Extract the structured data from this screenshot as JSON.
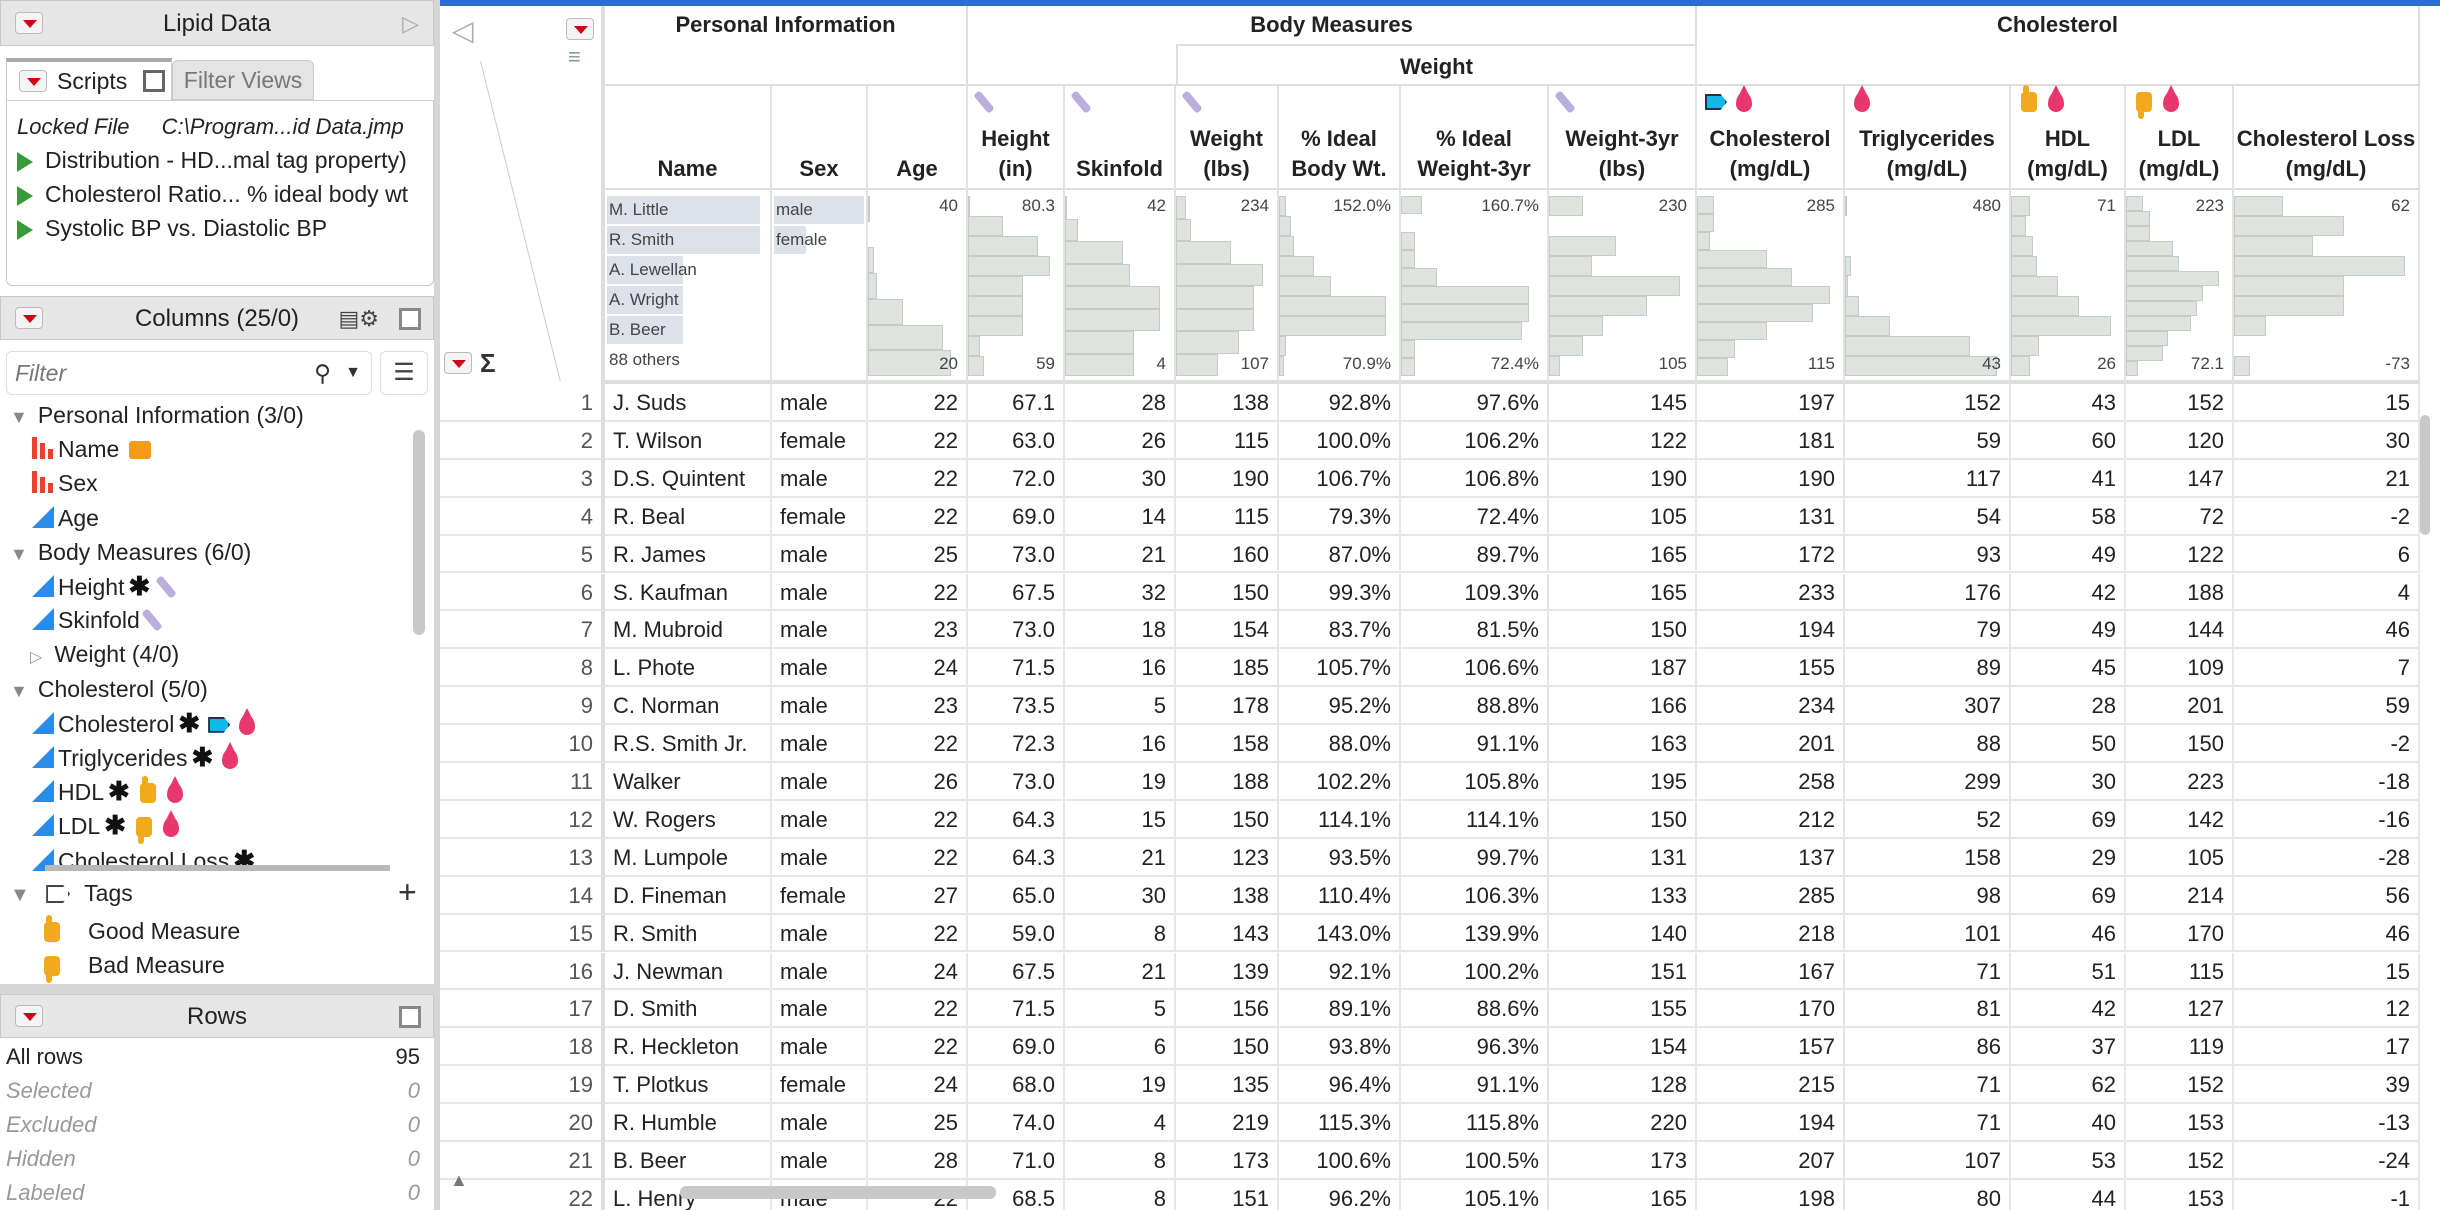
{
  "window": {
    "title": "Lipid Data"
  },
  "scripts_panel": {
    "tabs": [
      {
        "label": "Scripts"
      },
      {
        "label": "Filter Views"
      }
    ],
    "locked_label": "Locked File",
    "locked_path": "C:\\Program...id Data.jmp",
    "scripts": [
      {
        "label": "Distribution - HD...mal tag property)"
      },
      {
        "label": "Cholesterol Ratio... % ideal body wt"
      },
      {
        "label": "Systolic BP vs. Diastolic BP"
      }
    ]
  },
  "columns_panel": {
    "title": "Columns (25/0)",
    "filter_placeholder": "Filter",
    "tree": [
      {
        "label": "Personal Information (3/0)",
        "kind": "group",
        "expanded": true
      },
      {
        "label": "Name",
        "kind": "nominal",
        "icons": [
          "label-icon"
        ]
      },
      {
        "label": "Sex",
        "kind": "nominal",
        "icons": []
      },
      {
        "label": "Age",
        "kind": "continuous",
        "icons": []
      },
      {
        "label": "Body Measures (6/0)",
        "kind": "group",
        "expanded": true
      },
      {
        "label": "Height",
        "kind": "continuous",
        "icons": [
          "asterisk-icon",
          "ruler-icon"
        ]
      },
      {
        "label": "Skinfold",
        "kind": "continuous",
        "icons": [
          "ruler-icon"
        ]
      },
      {
        "label": "Weight (4/0)",
        "kind": "subgroup",
        "expanded": false
      },
      {
        "label": "Cholesterol (5/0)",
        "kind": "group",
        "expanded": true
      },
      {
        "label": "Cholesterol",
        "kind": "continuous",
        "icons": [
          "asterisk-icon",
          "tag-icon",
          "blood-drop-icon"
        ]
      },
      {
        "label": "Triglycerides",
        "kind": "continuous",
        "icons": [
          "asterisk-icon",
          "blood-drop-icon"
        ]
      },
      {
        "label": "HDL",
        "kind": "continuous",
        "icons": [
          "asterisk-icon",
          "thumbs-up-icon",
          "blood-drop-icon"
        ]
      },
      {
        "label": "LDL",
        "kind": "continuous",
        "icons": [
          "asterisk-icon",
          "thumbs-down-icon",
          "blood-drop-icon"
        ]
      },
      {
        "label": "Cholesterol Loss",
        "kind": "continuous",
        "icons": [
          "asterisk-icon"
        ]
      }
    ],
    "tags": {
      "label": "Tags",
      "items": [
        {
          "label": "Good Measure",
          "icon": "thumbs-up-icon"
        },
        {
          "label": "Bad Measure",
          "icon": "thumbs-down-icon"
        }
      ]
    }
  },
  "rows_panel": {
    "title": "Rows",
    "items": [
      {
        "label": "All rows",
        "value": "95"
      },
      {
        "label": "Selected",
        "value": "0"
      },
      {
        "label": "Excluded",
        "value": "0"
      },
      {
        "label": "Hidden",
        "value": "0"
      },
      {
        "label": "Labeled",
        "value": "0"
      }
    ]
  },
  "colors": {
    "accent_bar": "#2a6fc9",
    "nominal": "#e8412c",
    "continuous": "#2c8be6",
    "histogram": "#dfe3df",
    "blood_drop": "#e8366e",
    "tag": "#10b8e8",
    "thumbs": "#f2a91e"
  },
  "table": {
    "groups": [
      {
        "label": "Personal Information",
        "from": 0,
        "to": 2
      },
      {
        "label": "Body Measures",
        "from": 3,
        "to": 8
      },
      {
        "label": "Weight",
        "from": 5,
        "to": 8,
        "sub": true
      },
      {
        "label": "Cholesterol",
        "from": 9,
        "to": 13
      }
    ],
    "columns": [
      {
        "lines": [
          "Name"
        ],
        "icons": [],
        "type": "name",
        "top_values": [
          {
            "label": "M. Little",
            "frac": 0.95
          },
          {
            "label": "R. Smith",
            "frac": 0.95
          },
          {
            "label": "A. Lewellan",
            "frac": 0.47
          },
          {
            "label": "A. Wright",
            "frac": 0.47
          },
          {
            "label": "B. Beer",
            "frac": 0.47
          },
          {
            "label": "88 others",
            "frac": 0
          }
        ]
      },
      {
        "lines": [
          "Sex"
        ],
        "icons": [],
        "type": "sex",
        "top_values": [
          {
            "label": "male",
            "frac": 1.0
          },
          {
            "label": "female",
            "frac": 0.35
          }
        ]
      },
      {
        "lines": [
          "Age"
        ],
        "icons": [],
        "max": "40",
        "min": "20",
        "hist": [
          0.02,
          0,
          0.06,
          0.1,
          0.37,
          0.8,
          0.88
        ]
      },
      {
        "lines": [
          "Height",
          "(in)"
        ],
        "icons": [
          "ruler-icon"
        ],
        "max": "80.3",
        "min": "59",
        "hist": [
          0.02,
          0.38,
          0.77,
          0.9,
          0.6,
          0.6,
          0.6,
          0.13,
          0.18
        ]
      },
      {
        "lines": [
          "Skinfold"
        ],
        "icons": [
          "ruler-icon"
        ],
        "max": "42",
        "min": "4",
        "hist": [
          0.02,
          0.12,
          0.55,
          0.62,
          0.9,
          0.9,
          0.66,
          0.66
        ]
      },
      {
        "lines": [
          "Weight",
          "(lbs)"
        ],
        "icons": [
          "ruler-icon"
        ],
        "max": "234",
        "min": "107",
        "hist": [
          0.1,
          0.15,
          0.57,
          0.9,
          0.8,
          0.8,
          0.65,
          0.43
        ]
      },
      {
        "lines": [
          "% Ideal",
          "Body Wt."
        ],
        "icons": [],
        "max": "152.0%",
        "min": "70.9%",
        "hist": [
          0.06,
          0.1,
          0.13,
          0.3,
          0.45,
          0.92,
          0.92,
          0.06,
          0.04
        ]
      },
      {
        "lines": [
          "% Ideal",
          "Weight-3yr"
        ],
        "icons": [],
        "max": "160.7%",
        "min": "72.4%",
        "hist": [
          0.15,
          0,
          0.1,
          0.1,
          0.25,
          0.9,
          0.9,
          0.85,
          0.1,
          0.1
        ]
      },
      {
        "lines": [
          "Weight-3yr",
          "(lbs)"
        ],
        "icons": [
          "ruler-icon"
        ],
        "max": "230",
        "min": "105",
        "hist": [
          0.24,
          0,
          0.47,
          0.3,
          0.92,
          0.69,
          0.38,
          0.24,
          0.08
        ]
      },
      {
        "lines": [
          "Cholesterol",
          "(mg/dL)"
        ],
        "icons": [
          "tag-icon",
          "blood-drop-icon"
        ],
        "max": "285",
        "min": "115",
        "hist": [
          0.12,
          0.12,
          0.09,
          0.49,
          0.67,
          0.94,
          0.82,
          0.49,
          0.27,
          0.22
        ]
      },
      {
        "lines": [
          "Triglycerides",
          "(mg/dL)"
        ],
        "icons": [
          "blood-drop-icon"
        ],
        "max": "480",
        "min": "43",
        "hist": [
          0.01,
          0,
          0,
          0.04,
          0.02,
          0.09,
          0.28,
          0.78,
          0.95
        ]
      },
      {
        "lines": [
          "HDL",
          "(mg/dL)"
        ],
        "icons": [
          "thumbs-up-icon",
          "blood-drop-icon"
        ],
        "max": "71",
        "min": "26",
        "hist": [
          0.17,
          0.14,
          0.2,
          0.24,
          0.43,
          0.62,
          0.92,
          0.26,
          0.17
        ]
      },
      {
        "lines": [
          "LDL",
          "(mg/dL)"
        ],
        "icons": [
          "thumbs-down-icon",
          "blood-drop-icon"
        ],
        "max": "223",
        "min": "72.1",
        "hist": [
          0.17,
          0.24,
          0.24,
          0.46,
          0.52,
          0.91,
          0.75,
          0.7,
          0.64,
          0.41,
          0.36,
          0.12
        ]
      },
      {
        "lines": [
          "Cholesterol Loss",
          "(mg/dL)"
        ],
        "icons": [],
        "max": "62",
        "min": "-73",
        "hist": [
          0.27,
          0.61,
          0.44,
          0.95,
          0.61,
          0.61,
          0.18,
          0,
          0.09
        ]
      }
    ],
    "rows": [
      [
        "1",
        "J. Suds",
        "male",
        "22",
        "67.1",
        "28",
        "138",
        "92.8%",
        "97.6%",
        "145",
        "197",
        "152",
        "43",
        "152",
        "15"
      ],
      [
        "2",
        "T. Wilson",
        "female",
        "22",
        "63.0",
        "26",
        "115",
        "100.0%",
        "106.2%",
        "122",
        "181",
        "59",
        "60",
        "120",
        "30"
      ],
      [
        "3",
        "D.S. Quintent",
        "male",
        "22",
        "72.0",
        "30",
        "190",
        "106.7%",
        "106.8%",
        "190",
        "190",
        "117",
        "41",
        "147",
        "21"
      ],
      [
        "4",
        "R. Beal",
        "female",
        "22",
        "69.0",
        "14",
        "115",
        "79.3%",
        "72.4%",
        "105",
        "131",
        "54",
        "58",
        "72",
        "-2"
      ],
      [
        "5",
        "R. James",
        "male",
        "25",
        "73.0",
        "21",
        "160",
        "87.0%",
        "89.7%",
        "165",
        "172",
        "93",
        "49",
        "122",
        "6"
      ],
      [
        "6",
        "S. Kaufman",
        "male",
        "22",
        "67.5",
        "32",
        "150",
        "99.3%",
        "109.3%",
        "165",
        "233",
        "176",
        "42",
        "188",
        "4"
      ],
      [
        "7",
        "M. Mubroid",
        "male",
        "23",
        "73.0",
        "18",
        "154",
        "83.7%",
        "81.5%",
        "150",
        "194",
        "79",
        "49",
        "144",
        "46"
      ],
      [
        "8",
        "L. Phote",
        "male",
        "24",
        "71.5",
        "16",
        "185",
        "105.7%",
        "106.6%",
        "187",
        "155",
        "89",
        "45",
        "109",
        "7"
      ],
      [
        "9",
        "C. Norman",
        "male",
        "23",
        "73.5",
        "5",
        "178",
        "95.2%",
        "88.8%",
        "166",
        "234",
        "307",
        "28",
        "201",
        "59"
      ],
      [
        "10",
        "R.S. Smith Jr.",
        "male",
        "22",
        "72.3",
        "16",
        "158",
        "88.0%",
        "91.1%",
        "163",
        "201",
        "88",
        "50",
        "150",
        "-2"
      ],
      [
        "11",
        "Walker",
        "male",
        "26",
        "73.0",
        "19",
        "188",
        "102.2%",
        "105.8%",
        "195",
        "258",
        "299",
        "30",
        "223",
        "-18"
      ],
      [
        "12",
        "W. Rogers",
        "male",
        "22",
        "64.3",
        "15",
        "150",
        "114.1%",
        "114.1%",
        "150",
        "212",
        "52",
        "69",
        "142",
        "-16"
      ],
      [
        "13",
        "M. Lumpole",
        "male",
        "22",
        "64.3",
        "21",
        "123",
        "93.5%",
        "99.7%",
        "131",
        "137",
        "158",
        "29",
        "105",
        "-28"
      ],
      [
        "14",
        "D. Fineman",
        "female",
        "27",
        "65.0",
        "30",
        "138",
        "110.4%",
        "106.3%",
        "133",
        "285",
        "98",
        "69",
        "214",
        "56"
      ],
      [
        "15",
        "R. Smith",
        "male",
        "22",
        "59.0",
        "8",
        "143",
        "143.0%",
        "139.9%",
        "140",
        "218",
        "101",
        "46",
        "170",
        "46"
      ],
      [
        "16",
        "J. Newman",
        "male",
        "24",
        "67.5",
        "21",
        "139",
        "92.1%",
        "100.2%",
        "151",
        "167",
        "71",
        "51",
        "115",
        "15"
      ],
      [
        "17",
        "D. Smith",
        "male",
        "22",
        "71.5",
        "5",
        "156",
        "89.1%",
        "88.6%",
        "155",
        "170",
        "81",
        "42",
        "127",
        "12"
      ],
      [
        "18",
        "R. Heckleton",
        "male",
        "22",
        "69.0",
        "6",
        "150",
        "93.8%",
        "96.3%",
        "154",
        "157",
        "86",
        "37",
        "119",
        "17"
      ],
      [
        "19",
        "T. Plotkus",
        "female",
        "24",
        "68.0",
        "19",
        "135",
        "96.4%",
        "91.1%",
        "128",
        "215",
        "71",
        "62",
        "152",
        "39"
      ],
      [
        "20",
        "R. Humble",
        "male",
        "25",
        "74.0",
        "4",
        "219",
        "115.3%",
        "115.8%",
        "220",
        "194",
        "71",
        "40",
        "153",
        "-13"
      ],
      [
        "21",
        "B. Beer",
        "male",
        "28",
        "71.0",
        "8",
        "173",
        "100.6%",
        "100.5%",
        "173",
        "207",
        "107",
        "53",
        "152",
        "-24"
      ],
      [
        "22",
        "L. Henry",
        "male",
        "22",
        "68.5",
        "8",
        "151",
        "96.2%",
        "105.1%",
        "165",
        "198",
        "80",
        "44",
        "153",
        "-1"
      ]
    ]
  }
}
